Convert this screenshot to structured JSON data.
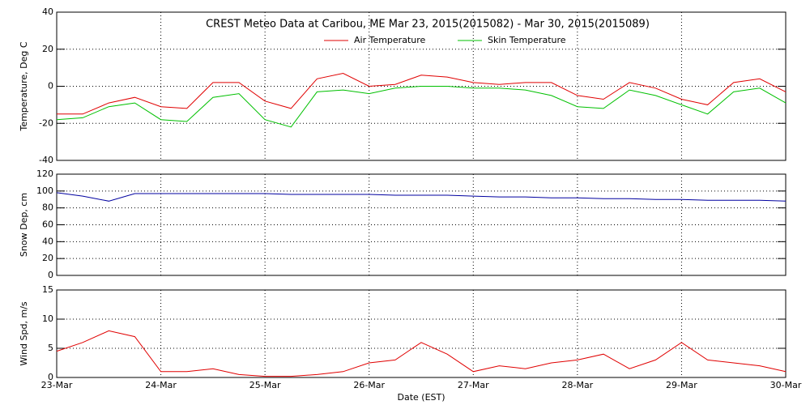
{
  "chart_data": [
    {
      "type": "line",
      "title": "CREST Meteo Data at Caribou, ME   Mar 23, 2015(2015082) - Mar 30, 2015(2015089)",
      "ylabel": "Temperature, Deg C",
      "x": [
        0,
        0.25,
        0.5,
        0.75,
        1,
        1.25,
        1.5,
        1.75,
        2,
        2.25,
        2.5,
        2.75,
        3,
        3.25,
        3.5,
        3.75,
        4,
        4.25,
        4.5,
        4.75,
        5,
        5.25,
        5.5,
        5.75,
        6,
        6.25,
        6.5,
        6.75,
        7
      ],
      "series": [
        {
          "name": "Air Temperature",
          "color": "#e00000",
          "values": [
            -15,
            -15,
            -9,
            -6,
            -11,
            -12,
            2,
            2,
            -8,
            -12,
            4,
            7,
            0,
            1,
            6,
            5,
            2,
            1,
            2,
            2,
            -5,
            -7,
            2,
            -1,
            -7,
            -10,
            2,
            4,
            -3
          ]
        },
        {
          "name": "Skin Temperature",
          "color": "#00c000",
          "values": [
            -18,
            -17,
            -11,
            -9,
            -18,
            -19,
            -6,
            -4,
            -18,
            -22,
            -3,
            -2,
            -4,
            -1,
            0,
            0,
            -1,
            -1,
            -2,
            -5,
            -11,
            -12,
            -2,
            -5,
            -10,
            -15,
            -3,
            -1,
            -9
          ]
        }
      ],
      "xlim": [
        0,
        7
      ],
      "xticks": [
        0,
        1,
        2,
        3,
        4,
        5,
        6,
        7
      ],
      "ylim": [
        -40,
        40
      ],
      "yticks": [
        -40,
        -20,
        0,
        20,
        40
      ],
      "grid": true,
      "legend": "top"
    },
    {
      "type": "line",
      "ylabel": "Snow Dep, cm",
      "x": [
        0,
        0.25,
        0.5,
        0.75,
        1,
        1.25,
        1.5,
        1.75,
        2,
        2.25,
        2.5,
        2.75,
        3,
        3.25,
        3.5,
        3.75,
        4,
        4.25,
        4.5,
        4.75,
        5,
        5.25,
        5.5,
        5.75,
        6,
        6.25,
        6.5,
        6.75,
        7
      ],
      "series": [
        {
          "color": "#0000a0",
          "values": [
            98,
            94,
            88,
            97,
            97,
            97,
            97,
            97,
            97,
            96,
            96,
            96,
            96,
            95,
            95,
            95,
            94,
            93,
            93,
            92,
            92,
            91,
            91,
            90,
            90,
            89,
            89,
            89,
            88
          ]
        }
      ],
      "xlim": [
        0,
        7
      ],
      "xticks": [
        0,
        1,
        2,
        3,
        4,
        5,
        6,
        7
      ],
      "ylim": [
        0,
        120
      ],
      "yticks": [
        0,
        20,
        40,
        60,
        80,
        100,
        120
      ],
      "grid": true
    },
    {
      "type": "line",
      "ylabel": "Wind Spd, m/s",
      "xlabel": "Date (EST)",
      "x": [
        0,
        0.25,
        0.5,
        0.75,
        1,
        1.25,
        1.5,
        1.75,
        2,
        2.25,
        2.5,
        2.75,
        3,
        3.25,
        3.5,
        3.75,
        4,
        4.25,
        4.5,
        4.75,
        5,
        5.25,
        5.5,
        5.75,
        6,
        6.25,
        6.5,
        6.75,
        7
      ],
      "series": [
        {
          "color": "#e00000",
          "values": [
            4.5,
            6,
            8,
            7,
            1,
            1,
            1.5,
            0.5,
            0.2,
            0.2,
            0.5,
            1,
            2.5,
            3,
            6,
            4,
            1,
            2,
            1.5,
            2.5,
            3,
            4,
            1.5,
            3,
            6,
            3,
            2.5,
            2,
            1
          ]
        }
      ],
      "xlim": [
        0,
        7
      ],
      "xticks": [
        {
          "value": 0,
          "label": "23-Mar"
        },
        {
          "value": 1,
          "label": "24-Mar"
        },
        {
          "value": 2,
          "label": "25-Mar"
        },
        {
          "value": 3,
          "label": "26-Mar"
        },
        {
          "value": 4,
          "label": "27-Mar"
        },
        {
          "value": 5,
          "label": "28-Mar"
        },
        {
          "value": 6,
          "label": "29-Mar"
        },
        {
          "value": 7,
          "label": "30-Mar"
        }
      ],
      "ylim": [
        0,
        15
      ],
      "yticks": [
        0,
        5,
        10,
        15
      ],
      "grid": true
    }
  ]
}
